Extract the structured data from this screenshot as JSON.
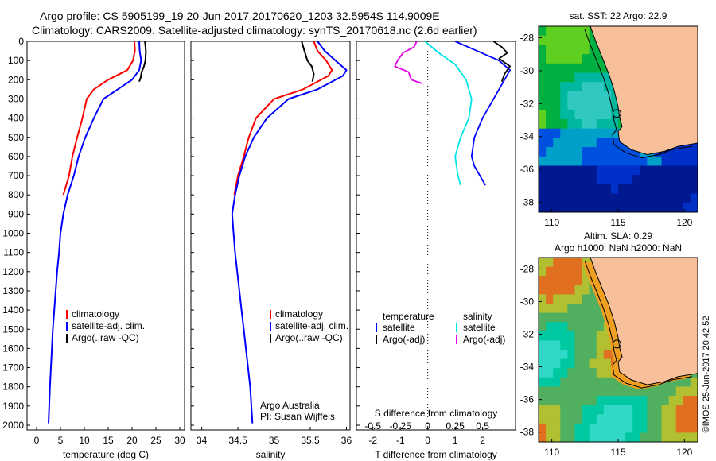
{
  "header": {
    "title_line1": "Argo profile: CS 5905199_19 20-Jun-2017 20170620_1203 32.5954S 114.9009E",
    "title_line2": "Climatology: CARS2009. Satellite-adjusted climatology: synTS_20170618.nc (2.6d earlier)"
  },
  "colors": {
    "climatology": "#ff0000",
    "satellite": "#0000ff",
    "argo": "#000000",
    "sat_salinity": "#00e5e5",
    "argo_salinity_adj": "#e600e6",
    "land": "#f7c09a"
  },
  "chart_data": [
    {
      "type": "line",
      "panel": "temperature",
      "xlabel": "temperature (deg C)",
      "xticks": [
        0,
        5,
        10,
        15,
        20,
        25,
        30
      ],
      "xlim": [
        -2,
        31
      ],
      "yticks": [
        0,
        100,
        200,
        300,
        400,
        500,
        600,
        700,
        800,
        900,
        1000,
        1100,
        1200,
        1300,
        1400,
        1500,
        1600,
        1700,
        1800,
        1900,
        2000
      ],
      "ylim": [
        0,
        2100
      ],
      "legend": [
        "climatology",
        "satellite-adj. clim.",
        "Argo(..raw -QC)"
      ],
      "series": [
        {
          "name": "climatology",
          "color": "#ff0000",
          "x": [
            20.5,
            20.6,
            20.2,
            19.0,
            15.0,
            12.0,
            10.5,
            9.6,
            8.5,
            7.5,
            6.8,
            5.6
          ],
          "y": [
            0,
            50,
            100,
            150,
            200,
            250,
            300,
            400,
            500,
            600,
            700,
            800
          ]
        },
        {
          "name": "satellite-adj. clim.",
          "color": "#0000ff",
          "x": [
            21.5,
            21.6,
            21.9,
            21.5,
            20.0,
            17.0,
            14.0,
            12.0,
            10.2,
            8.8,
            7.8,
            6.5,
            5.6,
            5.0,
            4.7,
            4.3,
            4.0,
            3.7,
            3.4,
            3.2,
            3.0,
            2.8,
            2.5
          ],
          "y": [
            0,
            50,
            100,
            150,
            200,
            250,
            300,
            400,
            500,
            600,
            700,
            800,
            900,
            1000,
            1100,
            1200,
            1300,
            1400,
            1500,
            1600,
            1700,
            1800,
            1990
          ]
        },
        {
          "name": "Argo(..raw -QC)",
          "color": "#000000",
          "x": [
            22.7,
            22.9,
            22.8,
            22.5,
            22.0,
            21.8,
            21.5
          ],
          "y": [
            0,
            50,
            100,
            130,
            160,
            190,
            210
          ]
        }
      ]
    },
    {
      "type": "line",
      "panel": "salinity",
      "xlabel": "salinity",
      "xticks": [
        34,
        34.5,
        35,
        35.5,
        36
      ],
      "xlim": [
        33.85,
        36.05
      ],
      "ylim": [
        0,
        2100
      ],
      "legend": [
        "climatology",
        "satellite-adj. clim.",
        "Argo(..raw -QC)"
      ],
      "annotation": [
        "Argo Australia",
        "PI: Susan Wijffels"
      ],
      "series": [
        {
          "name": "climatology",
          "color": "#ff0000",
          "x": [
            35.55,
            35.6,
            35.72,
            35.8,
            35.75,
            35.4,
            35.0,
            34.75,
            34.65,
            34.58,
            34.5,
            34.45
          ],
          "y": [
            0,
            50,
            100,
            150,
            180,
            250,
            300,
            400,
            500,
            600,
            700,
            800
          ]
        },
        {
          "name": "satellite-adj. clim.",
          "color": "#0000ff",
          "x": [
            35.6,
            35.7,
            35.85,
            36.0,
            35.95,
            35.6,
            35.2,
            34.9,
            34.72,
            34.6,
            34.52,
            34.46,
            34.42,
            34.44,
            34.46,
            34.49,
            34.52,
            34.55,
            34.58,
            34.61,
            34.64,
            34.67,
            34.7
          ],
          "y": [
            0,
            50,
            100,
            150,
            180,
            250,
            300,
            400,
            500,
            600,
            700,
            800,
            900,
            1000,
            1100,
            1200,
            1300,
            1400,
            1500,
            1600,
            1700,
            1800,
            1990
          ]
        },
        {
          "name": "Argo(..raw -QC)",
          "color": "#000000",
          "x": [
            35.38,
            35.42,
            35.46,
            35.52,
            35.55,
            35.53
          ],
          "y": [
            0,
            50,
            100,
            130,
            170,
            210
          ]
        }
      ]
    },
    {
      "type": "line",
      "panel": "difference",
      "xlabel": "T difference from climatology",
      "xlabel_top": "S difference from climatology",
      "xticks_T": [
        -2,
        -1,
        0,
        1,
        2
      ],
      "xticks_S": [
        "-0.5",
        "-0.25",
        "0",
        "0.25",
        "0.5"
      ],
      "xlim": [
        -2.6,
        3.2
      ],
      "ylim": [
        0,
        2100
      ],
      "legend_temperature": {
        "title": "temperature",
        "items": [
          "satellite",
          "Argo(-adj)"
        ]
      },
      "legend_salinity": {
        "title": "salinity",
        "items": [
          "satellite",
          "Argo(-adj)"
        ]
      },
      "series": [
        {
          "name": "T satellite",
          "color": "#0000ff",
          "x": [
            1.0,
            1.8,
            2.6,
            3.0,
            2.8,
            2.4,
            2.0,
            1.7,
            1.6,
            1.7,
            1.9,
            2.1
          ],
          "y": [
            0,
            50,
            100,
            150,
            200,
            300,
            400,
            500,
            600,
            650,
            700,
            750
          ]
        },
        {
          "name": "T Argo(-adj)",
          "color": "#000000",
          "x": [
            2.4,
            2.7,
            2.9,
            2.6,
            3.0,
            2.8,
            2.7
          ],
          "y": [
            0,
            30,
            60,
            90,
            130,
            170,
            210
          ]
        },
        {
          "name": "S satellite",
          "color": "#00e5e5",
          "x": [
            -0.1,
            0.4,
            1.0,
            1.4,
            1.6,
            1.5,
            1.2,
            1.0,
            1.1,
            1.2
          ],
          "y": [
            0,
            60,
            120,
            200,
            300,
            400,
            500,
            600,
            700,
            750
          ]
        },
        {
          "name": "S Argo(-adj)",
          "color": "#e600e6",
          "x": [
            -0.4,
            -0.5,
            -0.9,
            -1.1,
            -1.2,
            -0.7,
            -0.6,
            -0.2
          ],
          "y": [
            0,
            30,
            60,
            100,
            130,
            160,
            200,
            220
          ]
        }
      ]
    },
    {
      "type": "heatmap",
      "panel": "sst_map",
      "title": "sat. SST: 22 Argo: 22.9",
      "xticks": [
        110,
        115,
        120
      ],
      "yticks": [
        -28,
        -30,
        -32,
        -34,
        -36,
        -38
      ],
      "xlim": [
        109,
        121
      ],
      "ylim": [
        -38.6,
        -27.3
      ],
      "marker": {
        "lon": 114.9,
        "lat": -32.6
      }
    },
    {
      "type": "heatmap",
      "panel": "sla_map",
      "title_line1": "Altim. SLA: 0.29",
      "title_line2": "Argo h1000: NaN h2000: NaN",
      "xticks": [
        110,
        115,
        120
      ],
      "yticks": [
        -28,
        -30,
        -32,
        -34,
        -36,
        -38
      ],
      "xlim": [
        109,
        121
      ],
      "ylim": [
        -38.6,
        -27.3
      ],
      "marker": {
        "lon": 114.9,
        "lat": -32.6
      }
    }
  ],
  "footer": {
    "credit": "©IMOS 25-Jun-2017 20:42:52"
  }
}
